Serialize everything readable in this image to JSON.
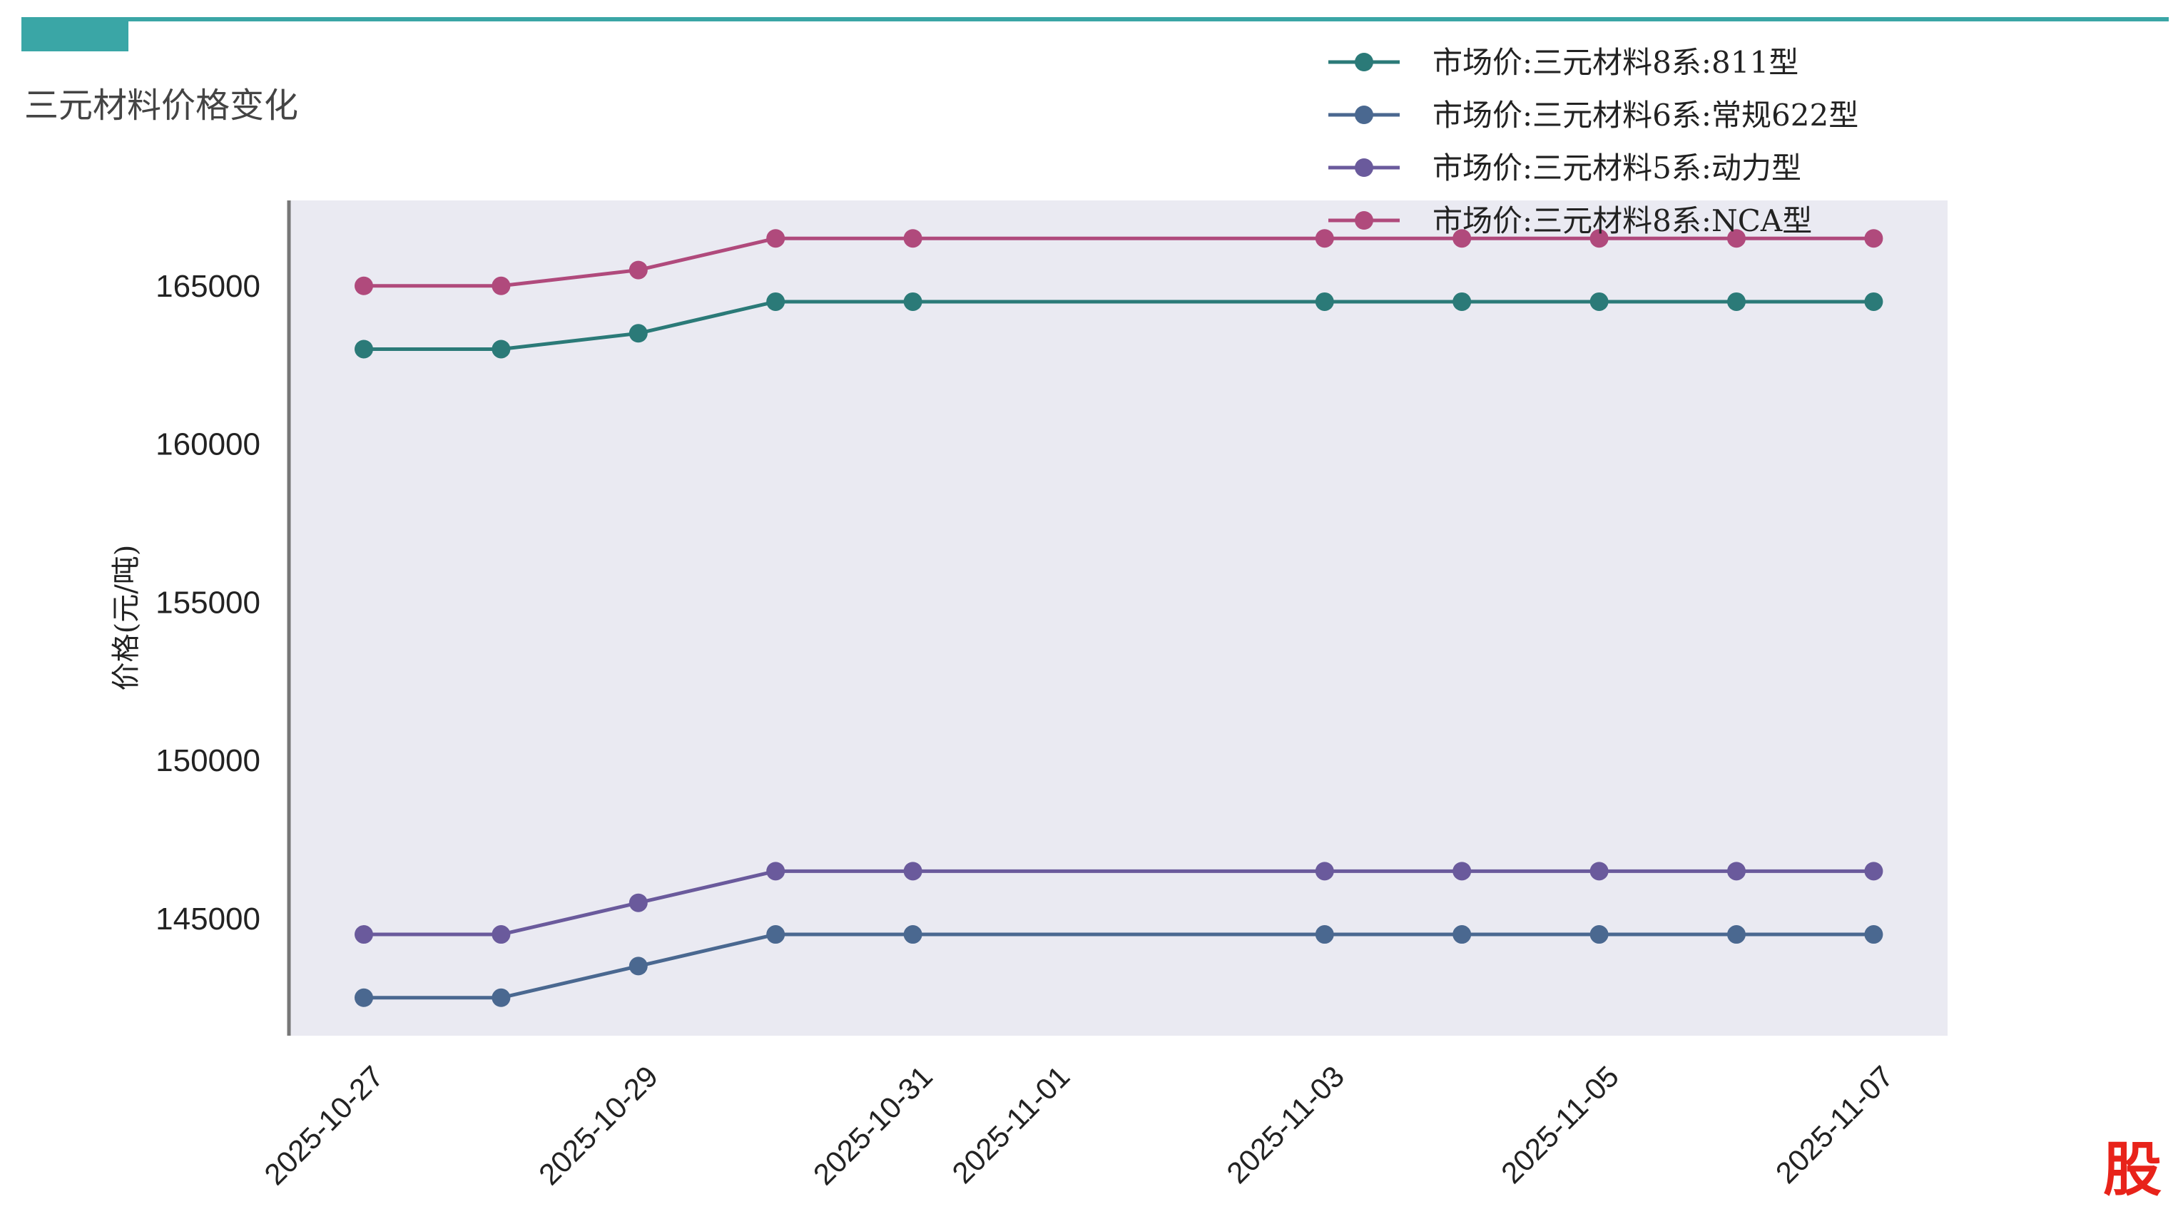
{
  "page": {
    "title": "三元材料价格变化",
    "watermark": "股"
  },
  "colors": {
    "accent": "#3aa6a6",
    "plot_background": "#eaeaf2",
    "axis": "#777777"
  },
  "chart_data": {
    "type": "line",
    "title": "",
    "xlabel": "",
    "ylabel": "价格(元/吨)",
    "x": [
      "2025-10-27",
      "2025-10-28",
      "2025-10-29",
      "2025-10-30",
      "2025-10-31",
      "2025-11-03",
      "2025-11-04",
      "2025-11-05",
      "2025-11-06",
      "2025-11-07"
    ],
    "x_ticks": [
      "2025-10-27",
      "2025-10-29",
      "2025-10-31",
      "2025-11-01",
      "2025-11-03",
      "2025-11-05",
      "2025-11-07"
    ],
    "y_ticks": [
      145000,
      150000,
      155000,
      160000,
      165000
    ],
    "xlim": [
      "2025-10-26",
      "2025-11-07"
    ],
    "ylim": [
      141300,
      167700
    ],
    "grid": false,
    "legend_position": "top-right",
    "series": [
      {
        "name": "市场价:三元材料8系:811型",
        "color": "#2b7a78",
        "values": [
          163000,
          163000,
          163500,
          164500,
          164500,
          164500,
          164500,
          164500,
          164500,
          164500
        ]
      },
      {
        "name": "市场价:三元材料6系:常规622型",
        "color": "#4a6890",
        "values": [
          142500,
          142500,
          143500,
          144500,
          144500,
          144500,
          144500,
          144500,
          144500,
          144500
        ]
      },
      {
        "name": "市场价:三元材料5系:动力型",
        "color": "#6a5a9c",
        "values": [
          144500,
          144500,
          145500,
          146500,
          146500,
          146500,
          146500,
          146500,
          146500,
          146500
        ]
      },
      {
        "name": "市场价:三元材料8系:NCA型",
        "color": "#b04a7c",
        "values": [
          165000,
          165000,
          165500,
          166500,
          166500,
          166500,
          166500,
          166500,
          166500,
          166500
        ]
      }
    ]
  }
}
